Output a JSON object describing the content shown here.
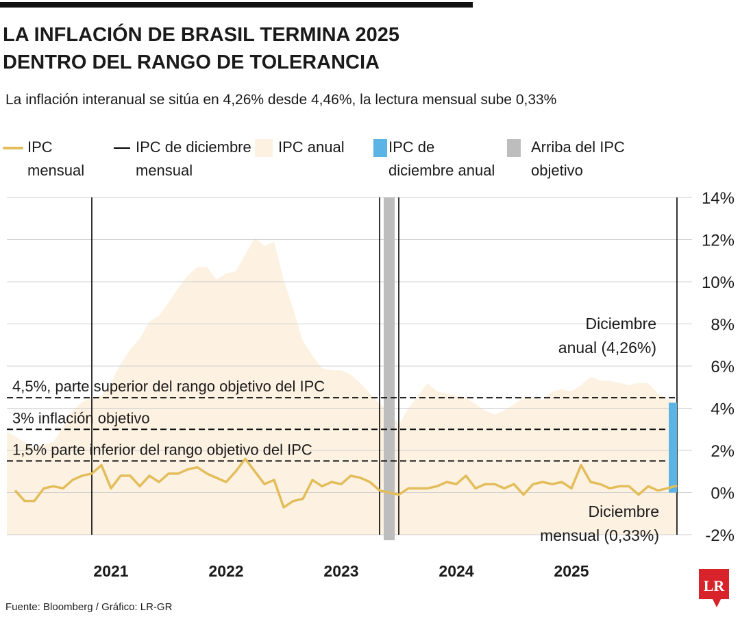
{
  "chart_data": {
    "type": "line",
    "title": [
      "LA INFLACIÓN DE BRASIL TERMINA 2025",
      "DENTRO DEL RANGO DE TOLERANCIA"
    ],
    "subtitle": "La inflación interanual se sitúa en 4,26% desde  4,46%, la lectura mensual sube  0,33%",
    "categories": [
      null,
      null,
      null,
      null,
      null,
      null,
      null,
      null,
      null,
      null,
      "2021",
      null,
      null,
      null,
      null,
      null,
      null,
      null,
      null,
      null,
      null,
      null,
      "2022",
      null,
      null,
      null,
      null,
      null,
      null,
      null,
      null,
      null,
      null,
      null,
      "2023",
      null,
      null,
      null,
      null,
      null,
      null,
      null,
      null,
      null,
      null,
      null,
      "2024",
      null,
      null,
      null,
      null,
      null,
      null,
      null,
      null,
      null,
      null,
      null,
      "2025",
      null,
      null,
      null,
      null,
      null,
      null,
      null,
      null,
      null,
      null,
      null
    ],
    "series": [
      {
        "name": "IPC mensual",
        "type": "line",
        "color": "#e3bd5a",
        "values": [
          0.1,
          -0.4,
          -0.4,
          0.2,
          0.3,
          0.2,
          0.6,
          0.8,
          0.9,
          1.3,
          0.2,
          0.8,
          0.8,
          0.3,
          0.8,
          0.5,
          0.9,
          0.9,
          1.1,
          1.2,
          0.9,
          0.7,
          0.5,
          1.0,
          1.6,
          1.0,
          0.4,
          0.6,
          -0.7,
          -0.4,
          -0.3,
          0.6,
          0.3,
          0.5,
          0.4,
          0.8,
          0.7,
          0.5,
          0.1,
          0.0,
          -0.1,
          0.2,
          0.2,
          0.2,
          0.3,
          0.5,
          0.4,
          0.8,
          0.2,
          0.4,
          0.4,
          0.2,
          0.4,
          -0.1,
          0.4,
          0.5,
          0.4,
          0.5,
          0.2,
          1.3,
          0.5,
          0.4,
          0.2,
          0.3,
          0.3,
          -0.1,
          0.3,
          0.1,
          0.2,
          0.33
        ]
      },
      {
        "name": "IPC de diciembre mensual",
        "type": "vline",
        "color": "#000000",
        "values": [
          null,
          null,
          null,
          null,
          null,
          null,
          null,
          null,
          14,
          null,
          null,
          null,
          null,
          null,
          null,
          null,
          null,
          null,
          null,
          null,
          null,
          null,
          null,
          null,
          null,
          null,
          null,
          null,
          null,
          null,
          null,
          null,
          null,
          null,
          null,
          null,
          null,
          null,
          14,
          null,
          14,
          null,
          null,
          null,
          null,
          null,
          null,
          null,
          null,
          null,
          null,
          null,
          null,
          null,
          null,
          null,
          null,
          null,
          null,
          null,
          null,
          null,
          null,
          null,
          null,
          null,
          null,
          null,
          null,
          14
        ]
      },
      {
        "name": "IPC anual",
        "type": "area",
        "color": "#fdf2e2",
        "values": [
          2.9,
          2.4,
          2.1,
          2.3,
          2.4,
          3.1,
          3.9,
          4.3,
          4.5,
          4.6,
          5.2,
          6.1,
          6.8,
          7.3,
          8.1,
          8.4,
          9.0,
          9.7,
          10.3,
          10.7,
          10.7,
          10.1,
          10.4,
          10.5,
          11.3,
          12.1,
          11.7,
          11.9,
          10.1,
          8.7,
          7.2,
          6.5,
          5.9,
          5.8,
          5.8,
          5.6,
          5.2,
          4.7,
          4.2,
          3.9,
          3.2,
          4.0,
          4.6,
          5.2,
          4.8,
          4.7,
          4.6,
          4.5,
          4.2,
          3.9,
          3.7,
          3.9,
          4.2,
          4.5,
          4.5,
          4.4,
          4.8,
          4.9,
          4.8,
          5.1,
          5.5,
          5.3,
          5.3,
          5.2,
          5.1,
          5.2,
          5.2,
          4.7,
          4.46,
          4.26
        ]
      },
      {
        "name": "IPC de diciembre anual",
        "type": "bar",
        "color": "#5ab4e5",
        "values": [
          null,
          null,
          null,
          null,
          null,
          null,
          null,
          null,
          null,
          null,
          null,
          null,
          null,
          null,
          null,
          null,
          null,
          null,
          null,
          null,
          null,
          null,
          null,
          null,
          null,
          null,
          null,
          null,
          null,
          null,
          null,
          null,
          null,
          null,
          null,
          null,
          null,
          null,
          null,
          null,
          null,
          null,
          null,
          null,
          null,
          null,
          null,
          null,
          null,
          null,
          null,
          null,
          null,
          null,
          null,
          null,
          null,
          null,
          null,
          null,
          null,
          null,
          null,
          null,
          null,
          null,
          null,
          null,
          null,
          4.26
        ]
      },
      {
        "name": "Arriba del IPC objetivo",
        "type": "band",
        "color": "#bdbdbd",
        "values": [
          null,
          null,
          null,
          null,
          null,
          null,
          null,
          null,
          null,
          null,
          null,
          null,
          null,
          null,
          null,
          null,
          null,
          null,
          null,
          null,
          null,
          null,
          null,
          null,
          null,
          null,
          null,
          null,
          null,
          null,
          null,
          null,
          null,
          null,
          null,
          null,
          null,
          null,
          null,
          14,
          null,
          null,
          null,
          null,
          null,
          null,
          null,
          null,
          null,
          null,
          null,
          null,
          null,
          null,
          null,
          null,
          null,
          null,
          null,
          null,
          null,
          null,
          null,
          null,
          null,
          null,
          null,
          null,
          null,
          null
        ]
      }
    ],
    "reference_lines": [
      {
        "value": 4.5,
        "label": "4,5%, parte superior del rango objetivo del IPC"
      },
      {
        "value": 3,
        "label": "3% inflación objetivo"
      },
      {
        "value": 1.5,
        "label": "1,5% parte inferior del rango objetivo del IPC"
      }
    ],
    "annotations": [
      {
        "value": 4.26,
        "text": [
          "Diciembre",
          "anual (4,26%)"
        ]
      },
      {
        "value": 0.33,
        "text": [
          "Diciembre",
          "mensual (0,33%)"
        ]
      }
    ],
    "ylim": [
      -2,
      14
    ],
    "yticks": [
      {
        "value": -2,
        "label": "-2%"
      },
      {
        "value": 0,
        "label": "0%"
      },
      {
        "value": 2,
        "label": "2%"
      },
      {
        "value": 4,
        "label": "4%"
      },
      {
        "value": 6,
        "label": "6%"
      },
      {
        "value": 8,
        "label": "8%"
      },
      {
        "value": 10,
        "label": "10%"
      },
      {
        "value": 12,
        "label": "12%"
      },
      {
        "value": 14,
        "label": "14%"
      }
    ],
    "grid": true,
    "source": "Fuente: Bloomberg / Gráfico: LR-GR",
    "logo": "LR"
  }
}
